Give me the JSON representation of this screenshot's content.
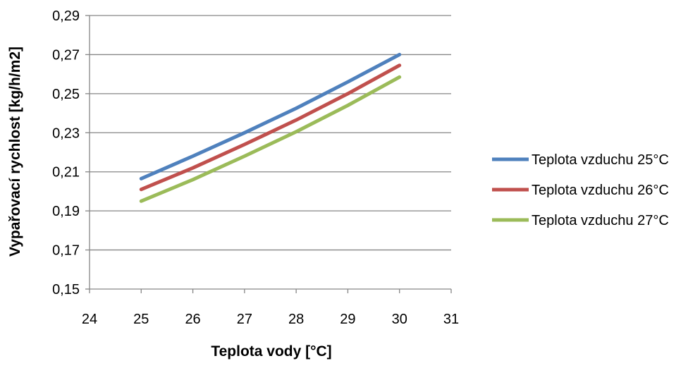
{
  "chart_data": {
    "type": "line",
    "title": "",
    "xlabel": "Teplota vody [°C]",
    "ylabel": "Vypařovací rychlost [kg/h/m2]",
    "xlim": [
      24,
      31
    ],
    "ylim": [
      0.15,
      0.29
    ],
    "x_ticks": [
      24,
      25,
      26,
      27,
      28,
      29,
      30,
      31
    ],
    "x_tick_labels": [
      "24",
      "25",
      "26",
      "27",
      "28",
      "29",
      "30",
      "31"
    ],
    "y_ticks": [
      0.15,
      0.17,
      0.19,
      0.21,
      0.23,
      0.25,
      0.27,
      0.29
    ],
    "y_tick_labels": [
      "0,15",
      "0,17",
      "0,19",
      "0,21",
      "0,23",
      "0,25",
      "0,27",
      "0,29"
    ],
    "grid": "horizontal",
    "legend_position": "right",
    "x": [
      25,
      26,
      27,
      28,
      29,
      30
    ],
    "series": [
      {
        "name": "Teplota vzduchu 25°C",
        "color": "#4f81bd",
        "values": [
          0.2065,
          0.218,
          0.23,
          0.2425,
          0.256,
          0.27
        ]
      },
      {
        "name": "Teplota vzduchu 26°C",
        "color": "#c0504d",
        "values": [
          0.201,
          0.212,
          0.224,
          0.2365,
          0.25,
          0.2645
        ]
      },
      {
        "name": "Teplota vzduchu 27°C",
        "color": "#9bbb59",
        "values": [
          0.195,
          0.206,
          0.218,
          0.2305,
          0.244,
          0.2585
        ]
      }
    ]
  }
}
